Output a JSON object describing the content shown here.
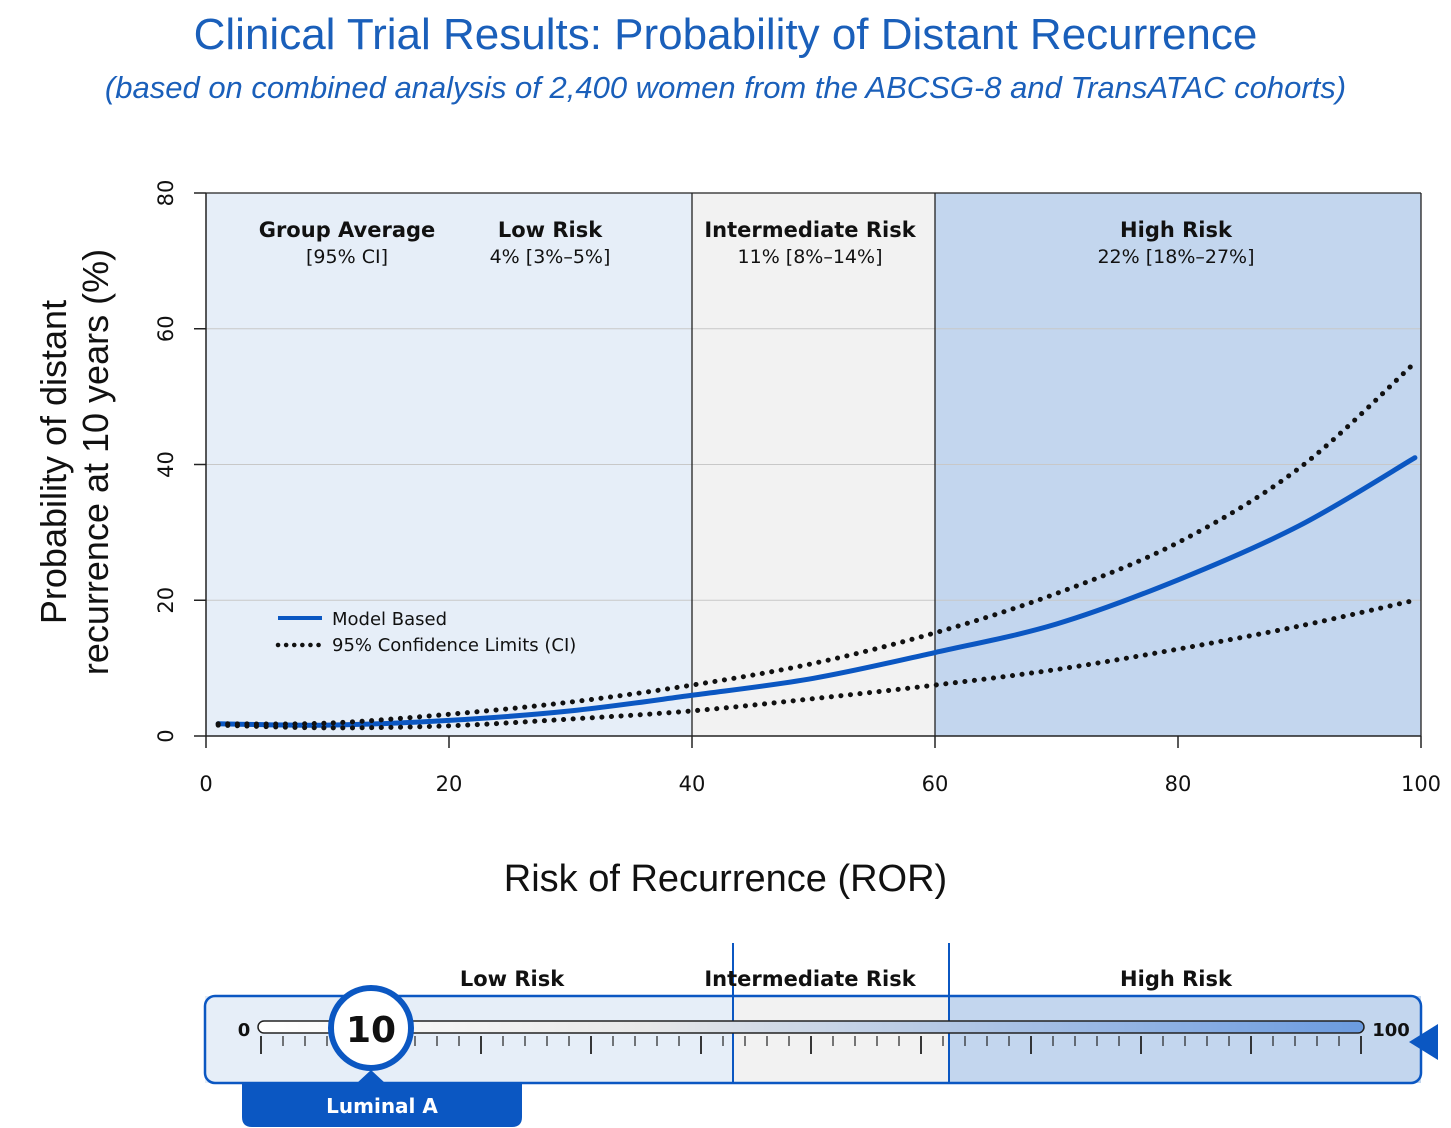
{
  "header": {
    "title": "Clinical Trial Results: Probability of Distant Recurrence",
    "subtitle": "(based on combined analysis of 2,400 women from the ABCSG-8 and TransATAC cohorts)"
  },
  "colors": {
    "brand_blue": "#1a5fba",
    "curve_blue": "#0b57c2",
    "low_bg": "#e6eef8",
    "intermediate_bg": "#f2f2f2",
    "high_bg": "#c3d6ee",
    "dark_text": "#111111"
  },
  "chart_data": {
    "type": "line",
    "title": "Clinical Trial Results: Probability of Distant Recurrence",
    "subtitle": "(based on combined analysis of 2,400 women from the ABCSG-8 and TransATAC cohorts)",
    "xlabel": "Risk of Recurrence (ROR)",
    "ylabel_line1": "Probability of distant",
    "ylabel_line2": "recurrence at 10 years (%)",
    "xlim": [
      0,
      100
    ],
    "ylim": [
      0,
      80
    ],
    "x_ticks": [
      "0",
      "20",
      "40",
      "60",
      "80",
      "100"
    ],
    "y_ticks": [
      "0",
      "20",
      "40",
      "60",
      "80"
    ],
    "grid": "horizontal",
    "legend": {
      "placement": "lower-left",
      "entries": [
        "Model Based",
        "95% Confidence Limits (CI)"
      ]
    },
    "regions": [
      {
        "name": "Low Risk",
        "x_range": [
          0,
          40
        ],
        "value": "4% [3%–5%]"
      },
      {
        "name": "Intermediate Risk",
        "x_range": [
          40,
          60
        ],
        "value": "11% [8%–14%]"
      },
      {
        "name": "High Risk",
        "x_range": [
          60,
          100
        ],
        "value": "22% [18%–27%]"
      }
    ],
    "group_average_label": "Group Average",
    "group_average_sub": "[95% CI]",
    "series": [
      {
        "name": "Model Based",
        "style": "solid",
        "x": [
          1,
          10,
          20,
          30,
          40,
          50,
          60,
          70,
          80,
          90,
          99.5
        ],
        "y": [
          1.8,
          1.6,
          2.3,
          3.7,
          6.0,
          8.5,
          12.3,
          16.5,
          23.0,
          31.0,
          41.0
        ]
      },
      {
        "name": "95% Confidence Limits (CI) upper",
        "style": "dotted",
        "x": [
          1,
          10,
          20,
          30,
          40,
          50,
          60,
          70,
          80,
          90,
          99.5
        ],
        "y": [
          1.8,
          1.9,
          3.2,
          5.0,
          7.5,
          10.7,
          15.2,
          21.0,
          28.5,
          39.5,
          55.0
        ]
      },
      {
        "name": "95% Confidence Limits (CI) lower",
        "style": "dotted",
        "x": [
          1,
          10,
          20,
          30,
          40,
          50,
          60,
          70,
          80,
          90,
          99.5
        ],
        "y": [
          1.6,
          1.2,
          1.5,
          2.5,
          3.7,
          5.5,
          7.5,
          9.8,
          12.8,
          16.2,
          20.0
        ]
      }
    ]
  },
  "ror_scale": {
    "min_label": "0",
    "max_label": "100",
    "value": 10,
    "value_label": "10",
    "subtype": "Luminal A",
    "min": 0,
    "max": 100,
    "segments": [
      {
        "name": "Low Risk",
        "range": [
          0,
          40
        ]
      },
      {
        "name": "Intermediate Risk",
        "range": [
          40,
          60
        ]
      },
      {
        "name": "High Risk",
        "range": [
          60,
          100
        ]
      }
    ]
  }
}
